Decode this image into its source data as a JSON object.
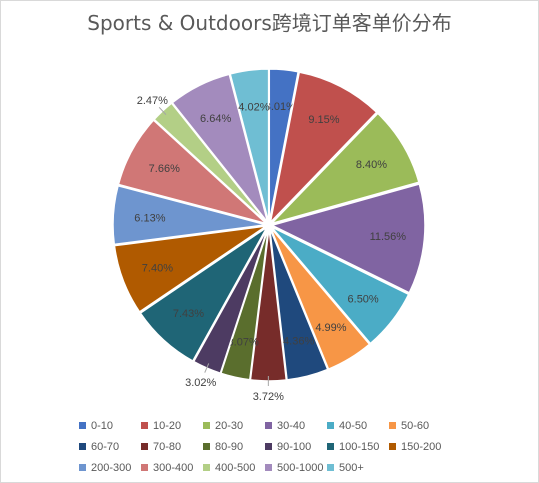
{
  "chart_data": {
    "type": "pie",
    "title": "Sports & Outdoors跨境订单客单价分布",
    "categories": [
      "0-10",
      "10-20",
      "20-30",
      "30-40",
      "40-50",
      "50-60",
      "60-70",
      "70-80",
      "80-90",
      "90-100",
      "100-150",
      "150-200",
      "200-300",
      "300-400",
      "400-500",
      "500-1000",
      "500+"
    ],
    "values": [
      3.01,
      9.15,
      8.4,
      11.56,
      6.5,
      4.99,
      4.36,
      3.72,
      3.07,
      3.02,
      7.43,
      7.4,
      6.13,
      7.66,
      2.47,
      6.64,
      4.02
    ],
    "labels": [
      "3.01%",
      "9.15%",
      "8.40%",
      "11.56%",
      "6.50%",
      "4.99%",
      "4.36%",
      "3.72%",
      "3.07%",
      "3.02%",
      "7.43%",
      "7.40%",
      "6.13%",
      "7.66%",
      "2.47%",
      "6.64%",
      "4.02%"
    ],
    "colors": [
      "#4472c4",
      "#c0504d",
      "#9bbb59",
      "#8064a2",
      "#4bacc6",
      "#f79646",
      "#1f497d",
      "#772c2a",
      "#5a6e2d",
      "#4d3b62",
      "#1f6576",
      "#b05a00",
      "#6e95cf",
      "#d07776",
      "#b3cf86",
      "#a38bbd",
      "#6fbed3"
    ],
    "legend_position": "bottom"
  }
}
